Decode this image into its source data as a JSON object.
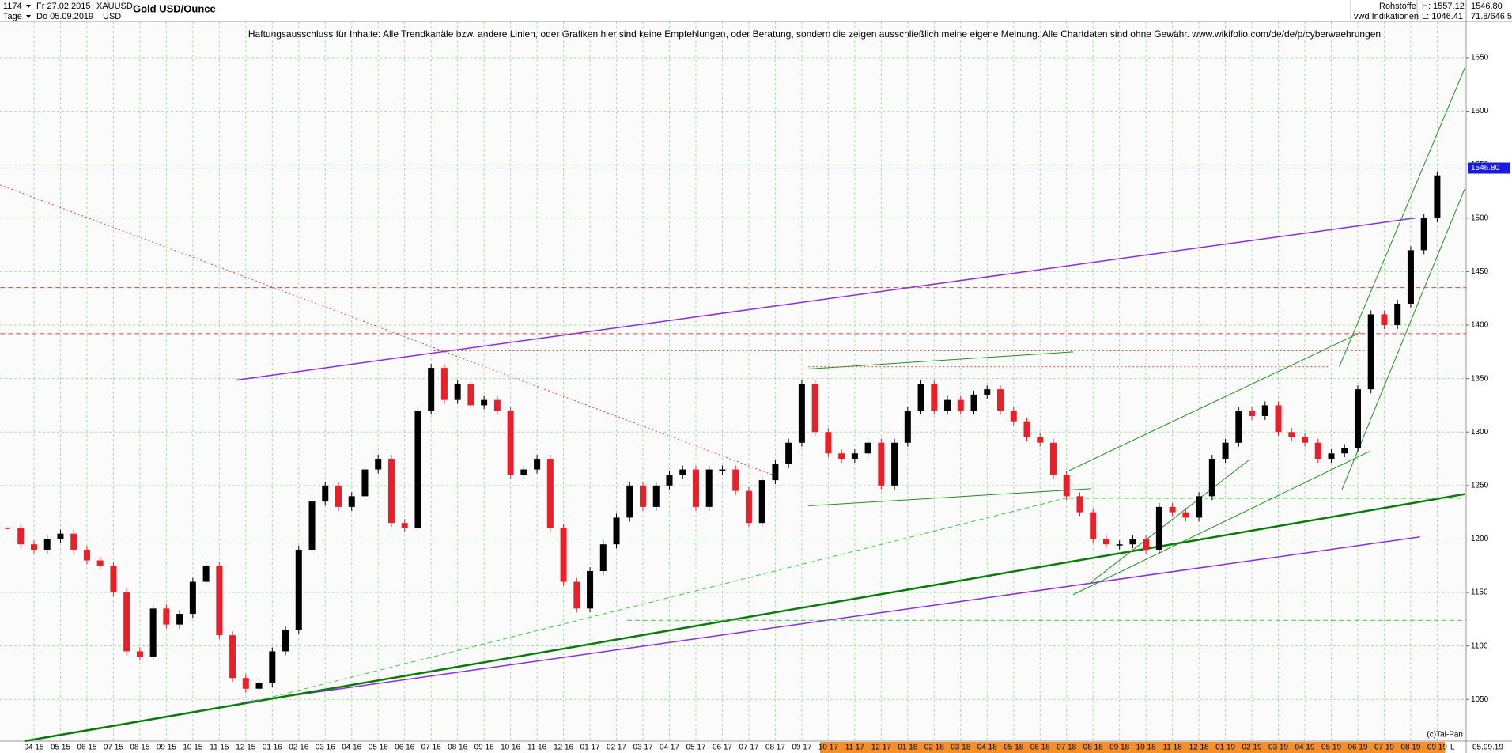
{
  "header": {
    "count": "1174",
    "start_date": "Fr 27.02.2015",
    "symbol": "XAUUSD",
    "title": "Gold USD/Ounce",
    "period": "Tage",
    "end_date": "Do 05.09.2019",
    "currency": "USD",
    "group": "Rohstoffe",
    "source": "vwd Indikationen",
    "high": "H: 1557.12",
    "low": "L: 1046.41",
    "right_top": "1546.80",
    "right_bottom": "71.8/646.5"
  },
  "chart_data": {
    "type": "candlestick",
    "title": "Gold USD/Ounce",
    "annotation": "Haftungsausschluss für Inhalte: Alle Trendkanäle bzw. andere Linien, oder Grafiken hier sind keine Empfehlungen, oder Beratung, sondern die zeigen ausschließlich meine eigene Meinung. Alle Chartdaten sind ohne Gewähr.  www.wikifolio.com/de/de/p/cyberwaehrungen",
    "copyright": "(c)Tai-Pan",
    "axis_end_label": "L",
    "axis_end_date": "05.09.19",
    "categories": [
      null,
      null,
      "04 15",
      null,
      "05 15",
      null,
      "06 15",
      null,
      "07 15",
      null,
      "08 15",
      null,
      "09 15",
      null,
      "10 15",
      null,
      "11 15",
      null,
      "12 15",
      null,
      "01 16",
      null,
      "02 16",
      null,
      "03 16",
      null,
      "04 16",
      null,
      "05 16",
      null,
      "06 16",
      null,
      "07 16",
      null,
      "08 16",
      null,
      "09 16",
      null,
      "10 16",
      null,
      "11 16",
      null,
      "12 16",
      null,
      "01 17",
      null,
      "02 17",
      null,
      "03 17",
      null,
      "04 17",
      null,
      "05 17",
      null,
      "06 17",
      null,
      "07 17",
      null,
      "08 17",
      null,
      "09 17",
      null,
      "10 17",
      null,
      "11 17",
      null,
      "12 17",
      null,
      "01 18",
      null,
      "02 18",
      null,
      "03 18",
      null,
      "04 18",
      null,
      "05 18",
      null,
      "06 18",
      null,
      "07 18",
      null,
      "08 18",
      null,
      "09 18",
      null,
      "10 18",
      null,
      "11 18",
      null,
      "12 18",
      null,
      "01 19",
      null,
      "02 19",
      null,
      "03 19",
      null,
      "04 19",
      null,
      "05 19",
      null,
      "06 19",
      null,
      "07 19",
      null,
      "08 19",
      null,
      "09 19"
    ],
    "values": [
      1210,
      1195,
      1190,
      1200,
      1205,
      1190,
      1180,
      1175,
      1150,
      1095,
      1090,
      1135,
      1120,
      1130,
      1160,
      1175,
      1110,
      1070,
      1060,
      1065,
      1095,
      1115,
      1190,
      1235,
      1250,
      1230,
      1240,
      1265,
      1275,
      1215,
      1210,
      1320,
      1360,
      1330,
      1345,
      1325,
      1330,
      1320,
      1260,
      1265,
      1275,
      1210,
      1160,
      1135,
      1170,
      1195,
      1220,
      1250,
      1230,
      1250,
      1260,
      1265,
      1230,
      1265,
      1265,
      1245,
      1215,
      1255,
      1270,
      1290,
      1345,
      1300,
      1280,
      1275,
      1280,
      1290,
      1250,
      1290,
      1320,
      1345,
      1320,
      1330,
      1320,
      1335,
      1340,
      1320,
      1310,
      1295,
      1290,
      1260,
      1240,
      1225,
      1200,
      1195,
      1195,
      1200,
      1190,
      1230,
      1225,
      1220,
      1240,
      1275,
      1290,
      1320,
      1315,
      1325,
      1300,
      1295,
      1290,
      1275,
      1280,
      1285,
      1340,
      1410,
      1400,
      1420,
      1470,
      1500,
      1540
    ],
    "up_color": "#000000",
    "down_color": "#e8202a",
    "ylim": [
      1011,
      1684
    ],
    "yticks": [
      1050,
      1100,
      1150,
      1200,
      1250,
      1300,
      1350,
      1400,
      1450,
      1500,
      1550,
      1600,
      1650
    ],
    "grid": true,
    "grid_color": "#a6dca6",
    "last_price": {
      "value": 1546.8,
      "label": "1546.80"
    },
    "last_price_color": "#1a1adf",
    "lines": [
      {
        "x": [
          17.3,
          106.4
        ],
        "y": [
          1348.6,
          1500.2
        ],
        "color": "#8a2be2",
        "style": "solid",
        "width": 1.5
      },
      {
        "x": [
          17.7,
          106.7
        ],
        "y": [
          1047,
          1202
        ],
        "color": "#8a2be2",
        "style": "solid",
        "width": 1.5
      },
      {
        "x": [
          1.27,
          110.1
        ],
        "y": [
          1011,
          1242
        ],
        "color": "#0a7a0a",
        "style": "solid",
        "width": 2.5
      },
      {
        "x": [
          18.3,
          80.2
        ],
        "y": [
          1047,
          1239
        ],
        "color": "#3cc83c",
        "style": "dashed",
        "width": 1
      },
      {
        "x": [
          100.6,
          110.1
        ],
        "y": [
          1361,
          1641
        ],
        "color": "#1e901e",
        "style": "solid",
        "width": 1
      },
      {
        "x": [
          100.8,
          110.1
        ],
        "y": [
          1246,
          1528
        ],
        "color": "#1e901e",
        "style": "solid",
        "width": 1
      },
      {
        "x": [
          80.2,
          102.2
        ],
        "y": [
          1264,
          1393
        ],
        "color": "#1e901e",
        "style": "solid",
        "width": 1
      },
      {
        "x": [
          80.5,
          102.9
        ],
        "y": [
          1148,
          1282
        ],
        "color": "#1e901e",
        "style": "solid",
        "width": 1
      },
      {
        "x": [
          60.5,
          81.8
        ],
        "y": [
          1231,
          1247
        ],
        "color": "#1e901e",
        "style": "solid",
        "width": 1
      },
      {
        "x": [
          60.5,
          80.5
        ],
        "y": [
          1359,
          1375
        ],
        "color": "#1e901e",
        "style": "solid",
        "width": 1
      },
      {
        "x": [
          81.8,
          93.8
        ],
        "y": [
          1159,
          1274
        ],
        "color": "#1e901e",
        "style": "solid",
        "width": 1
      },
      {
        "x": [
          -0.55,
          57.8
        ],
        "y": [
          1531,
          1260
        ],
        "color": "#e8403a",
        "style": "dotted",
        "width": 1
      },
      {
        "x": [
          -0.55,
          110.2
        ],
        "y": [
          1435,
          1435
        ],
        "color": "#e8403a",
        "style": "dashed",
        "width": 1
      },
      {
        "x": [
          -0.55,
          110.2
        ],
        "y": [
          1392,
          1392
        ],
        "color": "#e8403a",
        "style": "dashed",
        "width": 1
      },
      {
        "x": [
          32.2,
          102.5
        ],
        "y": [
          1376,
          1376
        ],
        "color": "#e8403a",
        "style": "dotted",
        "width": 1
      },
      {
        "x": [
          60.5,
          99.8
        ],
        "y": [
          1361,
          1361
        ],
        "color": "#e8403a",
        "style": "dotted",
        "width": 1
      },
      {
        "x": [
          80.2,
          110.2
        ],
        "y": [
          1238,
          1238
        ],
        "color": "#3cc83c",
        "style": "dashed",
        "width": 1
      },
      {
        "x": [
          46.8,
          110.2
        ],
        "y": [
          1124,
          1124
        ],
        "color": "#3cc83c",
        "style": "dashed",
        "width": 1
      }
    ]
  }
}
